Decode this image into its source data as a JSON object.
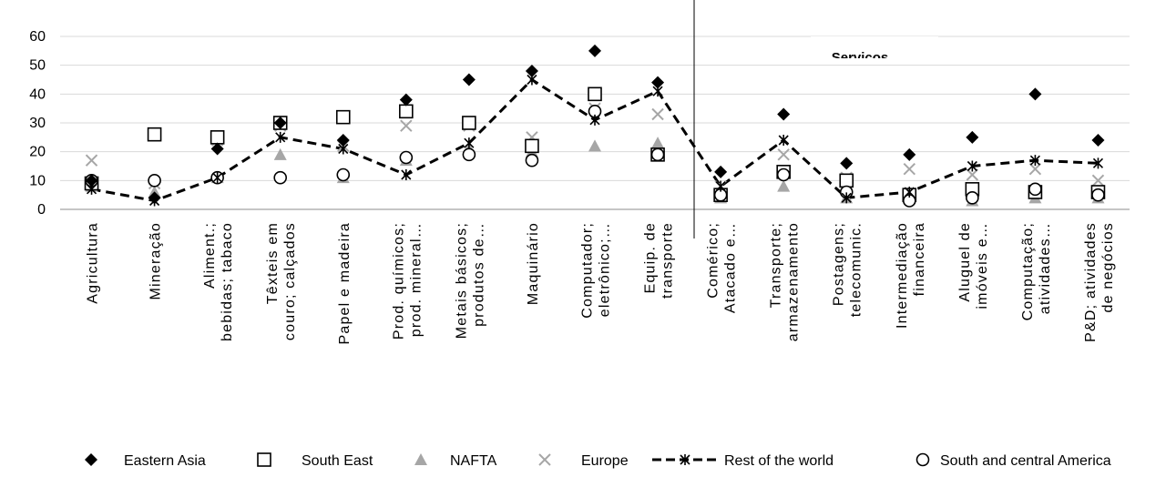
{
  "chart_data": {
    "type": "scatter",
    "ylim": [
      0,
      60
    ],
    "yticks": [
      0,
      10,
      20,
      30,
      40,
      50,
      60
    ],
    "grid": true,
    "legend_position": "bottom",
    "section_label": "Servicos",
    "categories": [
      [
        "Agricultura"
      ],
      [
        "Mineração"
      ],
      [
        "Aliment.;",
        "bebidas; tabaco"
      ],
      [
        "Têxteis em",
        "couro; calçados"
      ],
      [
        "Papel e madeira"
      ],
      [
        "Prod. químicos;",
        "prod. mineral…"
      ],
      [
        "Metais básicos;",
        "produtos de…"
      ],
      [
        "Maquinário"
      ],
      [
        "Computador;",
        "eletrônico;…"
      ],
      [
        "Equip. de",
        "transporte"
      ],
      [
        "Comérico;",
        "Atacado e…"
      ],
      [
        "Transporte;",
        "armazenamento"
      ],
      [
        "Postagens;",
        "telecomunic."
      ],
      [
        "Intermediação",
        "financeira"
      ],
      [
        "Aluguel de",
        "imóveis e…"
      ],
      [
        "Computação;",
        "atividades…"
      ],
      [
        "P&D; atividades",
        "de negócios"
      ]
    ],
    "series": [
      {
        "name": "Eastern Asia",
        "marker": "diamond",
        "color": "#000000",
        "values": [
          10,
          4,
          21,
          30,
          24,
          38,
          45,
          48,
          55,
          44,
          13,
          33,
          16,
          19,
          25,
          40,
          24
        ]
      },
      {
        "name": "South East",
        "marker": "square",
        "color": "#000000",
        "values": [
          9,
          26,
          25,
          30,
          32,
          34,
          30,
          22,
          40,
          19,
          5,
          13,
          10,
          5,
          7,
          6,
          6
        ]
      },
      {
        "name": "NAFTA",
        "marker": "triangle",
        "color": "#a6a6a6",
        "values": [
          8,
          6,
          11,
          19,
          11,
          17,
          21,
          20,
          22,
          23,
          4,
          8,
          4,
          4,
          3,
          4,
          4
        ]
      },
      {
        "name": "Europe",
        "marker": "cross",
        "color": "#a6a6a6",
        "values": [
          17,
          9,
          24,
          29,
          22,
          29,
          29,
          25,
          35,
          33,
          8,
          19,
          11,
          14,
          12,
          14,
          10
        ]
      },
      {
        "name": "Rest of the world",
        "marker": "line-asterisk",
        "color": "#000000",
        "values": [
          7,
          3,
          11,
          25,
          21,
          12,
          23,
          45,
          31,
          41,
          8,
          24,
          4,
          6,
          15,
          17,
          16
        ]
      },
      {
        "name": "South and central America",
        "marker": "circle",
        "color": "#000000",
        "values": [
          10,
          10,
          11,
          11,
          12,
          18,
          19,
          17,
          34,
          19,
          5,
          12,
          6,
          3,
          4,
          7,
          5
        ]
      }
    ]
  }
}
